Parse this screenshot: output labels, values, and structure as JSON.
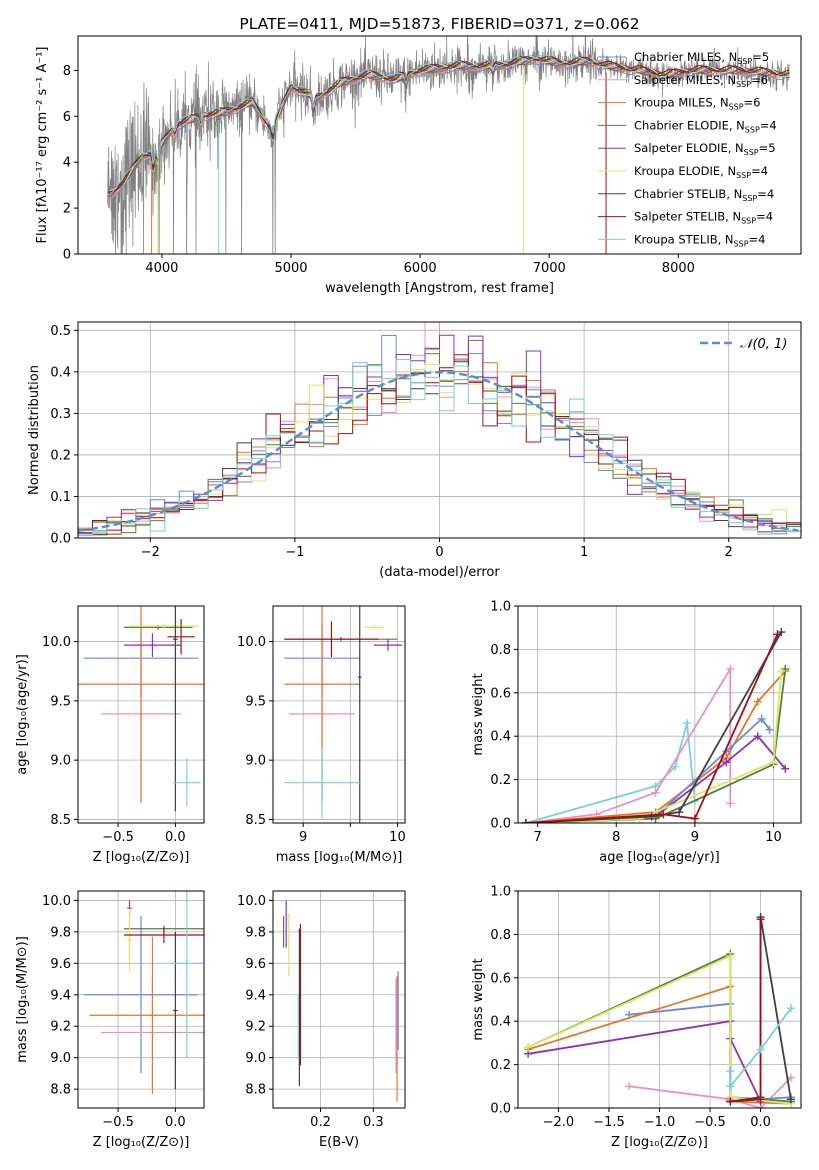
{
  "chart_data": [
    {
      "id": "spectrum",
      "type": "line",
      "title": "PLATE=0411, MJD=51873, FIBERID=0371, z=0.062",
      "xlabel": "wavelength [Angstrom, rest frame]",
      "ylabel": "Flux [fλ10⁻¹⁷ erg cm⁻² s⁻¹ A⁻¹]",
      "xlim": [
        3350,
        8950
      ],
      "ylim": [
        0,
        9.5
      ],
      "xticks": [
        4000,
        5000,
        6000,
        7000,
        8000
      ],
      "yticks": [
        0,
        2,
        4,
        6,
        8
      ],
      "grid": false,
      "legend_position": "right",
      "data_color": "#808080",
      "model_knots": {
        "x": [
          3600,
          3700,
          3850,
          3950,
          4100,
          4300,
          4500,
          4700,
          4850,
          5000,
          5200,
          5400,
          5600,
          5800,
          6000,
          6300,
          6600,
          6900,
          7100,
          7300,
          7450,
          7550,
          7700,
          7900,
          8100,
          8300,
          8500,
          8700,
          8850
        ],
        "y": [
          2.6,
          3.1,
          4.3,
          4.4,
          5.6,
          6.0,
          6.2,
          6.6,
          5.4,
          7.3,
          6.8,
          7.5,
          7.8,
          7.6,
          8.0,
          8.2,
          8.2,
          8.5,
          8.3,
          8.4,
          8.2,
          8.1,
          8.0,
          7.8,
          8.0,
          8.0,
          8.0,
          7.9,
          7.8
        ]
      },
      "series": [
        {
          "name": "Chabrier MILES, N_SSP=5",
          "color": "#6a8ad8"
        },
        {
          "name": "Salpeter MILES, N_SSP=6",
          "color": "#e890c8"
        },
        {
          "name": "Kroupa MILES, N_SSP=6",
          "color": "#e07828"
        },
        {
          "name": "Chabrier ELODIE, N_SSP=4",
          "color": "#508040"
        },
        {
          "name": "Salpeter ELODIE, N_SSP=5",
          "color": "#9030b0"
        },
        {
          "name": "Kroupa ELODIE, N_SSP=4",
          "color": "#d8e860"
        },
        {
          "name": "Chabrier STELIB, N_SSP=4",
          "color": "#404040"
        },
        {
          "name": "Salpeter STELIB, N_SSP=4",
          "color": "#a01010"
        },
        {
          "name": "Kroupa STELIB, N_SSP=4",
          "color": "#78d0d8"
        }
      ]
    },
    {
      "id": "residuals",
      "type": "histogram",
      "xlabel": "(data-model)/error",
      "ylabel": "Normed distribution",
      "xlim": [
        -2.5,
        2.5
      ],
      "ylim": [
        0,
        0.52
      ],
      "xticks": [
        -2,
        -1,
        0,
        1,
        2
      ],
      "yticks": [
        0.0,
        0.1,
        0.2,
        0.3,
        0.4,
        0.5
      ],
      "grid": true,
      "legend_position": "top-right",
      "legend_label": "𝒩(0, 1)",
      "reference_curve": "normal(0,1)",
      "reference_color": "#5a8ad8",
      "bin_width": 0.1,
      "series_colors": [
        "#6a8ad8",
        "#e890c8",
        "#e07828",
        "#508040",
        "#9030b0",
        "#d8e860",
        "#404040",
        "#a01010",
        "#78d0d8"
      ]
    },
    {
      "id": "age_vs_Z",
      "type": "errorbar",
      "xlabel": "Z [log₁₀(Z/Z⊙)]",
      "ylabel": "age  [log₁₀(age/yr)]",
      "xlim": [
        -0.85,
        0.25
      ],
      "ylim": [
        8.47,
        10.3
      ],
      "xticks": [
        -0.5,
        0.0
      ],
      "xtick_labels": [
        "−0.5",
        "0.0"
      ],
      "yticks": [
        8.5,
        9.0,
        9.5,
        10.0
      ],
      "grid": true,
      "points": [
        {
          "color": "#6a8ad8",
          "x": -0.3,
          "xerr": 0.5,
          "y": 9.86,
          "yerr": 0.3
        },
        {
          "color": "#e890c8",
          "x": -0.3,
          "xerr": 0.35,
          "y": 9.39,
          "yerr": 0.7
        },
        {
          "color": "#e07828",
          "x": -0.3,
          "xerr": 0.6,
          "y": 9.64,
          "yerr": 1.0
        },
        {
          "color": "#508040",
          "x": -0.15,
          "xerr": 0.3,
          "y": 10.12,
          "yerr": 0.02
        },
        {
          "color": "#9030b0",
          "x": -0.2,
          "xerr": 0.25,
          "y": 9.97,
          "yerr": 0.1
        },
        {
          "color": "#d8e860",
          "x": -0.1,
          "xerr": 0.3,
          "y": 10.13,
          "yerr": 0.02
        },
        {
          "color": "#404040",
          "x": 0.0,
          "xerr": 0.02,
          "y": 10.02,
          "yerr": 1.45
        },
        {
          "color": "#a01010",
          "x": 0.05,
          "xerr": 0.12,
          "y": 10.04,
          "yerr": 0.15
        },
        {
          "color": "#78d0d8",
          "x": 0.1,
          "xerr": 0.12,
          "y": 8.81,
          "yerr": 0.2
        }
      ]
    },
    {
      "id": "age_vs_mass",
      "type": "errorbar",
      "xlabel": "mass [log₁₀(M/M⊙)]",
      "ylabel": "",
      "xlim": [
        8.68,
        10.08
      ],
      "ylim": [
        8.47,
        10.3
      ],
      "xticks": [
        9,
        9.5,
        10
      ],
      "xtick_labels": [
        "9",
        "",
        "10"
      ],
      "yticks": [
        8.5,
        9.0,
        9.5,
        10.0
      ],
      "grid": true,
      "points": [
        {
          "color": "#6a8ad8",
          "x": 9.2,
          "xerr": 0.4,
          "y": 9.86,
          "yerr": 0.3
        },
        {
          "color": "#e890c8",
          "x": 9.2,
          "xerr": 0.35,
          "y": 9.39,
          "yerr": 0.7
        },
        {
          "color": "#e07828",
          "x": 9.2,
          "xerr": 0.4,
          "y": 9.64,
          "yerr": 1.0
        },
        {
          "color": "#508040",
          "x": 9.4,
          "xerr": 0.6,
          "y": 10.02,
          "yerr": 0.02
        },
        {
          "color": "#9030b0",
          "x": 9.9,
          "xerr": 0.15,
          "y": 9.97,
          "yerr": 0.05
        },
        {
          "color": "#d8e860",
          "x": 9.75,
          "xerr": 0.1,
          "y": 10.12,
          "yerr": 0.02
        },
        {
          "color": "#404040",
          "x": 9.6,
          "xerr": 0.02,
          "y": 9.7,
          "yerr": 1.4
        },
        {
          "color": "#a01010",
          "x": 9.3,
          "xerr": 0.5,
          "y": 10.02,
          "yerr": 0.15
        },
        {
          "color": "#78d0d8",
          "x": 9.2,
          "xerr": 0.4,
          "y": 8.81,
          "yerr": 0.3
        }
      ]
    },
    {
      "id": "weight_vs_age",
      "type": "line",
      "xlabel": "age  [log₁₀(age/yr)]",
      "ylabel": "mass weight",
      "xlim": [
        6.75,
        10.35
      ],
      "ylim": [
        0,
        1
      ],
      "xticks": [
        7,
        8,
        9,
        10
      ],
      "yticks": [
        0.0,
        0.2,
        0.4,
        0.6,
        0.8,
        1.0
      ],
      "grid": true,
      "series": [
        {
          "color": "#78d0d8",
          "x": [
            6.85,
            8.5,
            8.75,
            8.9,
            9.0
          ],
          "y": [
            0.0,
            0.17,
            0.26,
            0.46,
            0.1
          ]
        },
        {
          "color": "#e890c8",
          "x": [
            6.85,
            7.75,
            8.5,
            9.45,
            9.45
          ],
          "y": [
            0.0,
            0.04,
            0.14,
            0.71,
            0.09
          ]
        },
        {
          "color": "#e07828",
          "x": [
            6.85,
            8.5,
            9.4,
            9.8,
            10.15
          ],
          "y": [
            0.0,
            0.05,
            0.3,
            0.56,
            0.7
          ]
        },
        {
          "color": "#6a8ad8",
          "x": [
            6.85,
            8.5,
            9.4,
            9.85,
            9.95
          ],
          "y": [
            0.0,
            0.03,
            0.33,
            0.48,
            0.43
          ]
        },
        {
          "color": "#9030b0",
          "x": [
            6.85,
            8.5,
            9.4,
            9.8,
            10.15
          ],
          "y": [
            0.0,
            0.03,
            0.28,
            0.4,
            0.25
          ]
        },
        {
          "color": "#508040",
          "x": [
            6.85,
            8.5,
            10.0,
            10.15
          ],
          "y": [
            0.0,
            0.02,
            0.27,
            0.71
          ]
        },
        {
          "color": "#d8e860",
          "x": [
            6.85,
            8.3,
            10.0,
            10.1
          ],
          "y": [
            0.0,
            0.02,
            0.28,
            0.7
          ]
        },
        {
          "color": "#404040",
          "x": [
            6.85,
            8.45,
            8.8,
            10.1
          ],
          "y": [
            0.0,
            0.03,
            0.05,
            0.88
          ]
        },
        {
          "color": "#a01010",
          "x": [
            6.85,
            8.6,
            9.0,
            10.05
          ],
          "y": [
            0.0,
            0.04,
            0.02,
            0.87
          ]
        }
      ]
    },
    {
      "id": "mass_vs_Z",
      "type": "errorbar",
      "xlabel": "Z [log₁₀(Z/Z⊙)]",
      "ylabel": "mass [log₁₀(M/M⊙)]",
      "xlim": [
        -0.85,
        0.25
      ],
      "ylim": [
        8.68,
        10.06
      ],
      "xticks": [
        -0.5,
        0.0
      ],
      "xtick_labels": [
        "−0.5",
        "0.0"
      ],
      "yticks": [
        8.8,
        9.0,
        9.2,
        9.4,
        9.6,
        9.8,
        10.0
      ],
      "grid": true,
      "points": [
        {
          "color": "#6a8ad8",
          "x": -0.3,
          "xerr": 0.5,
          "y": 9.4,
          "yerr": 0.5
        },
        {
          "color": "#e890c8",
          "x": -0.2,
          "xerr": 0.45,
          "y": 9.16,
          "yerr": 0.35
        },
        {
          "color": "#e07828",
          "x": -0.2,
          "xerr": 0.55,
          "y": 9.27,
          "yerr": 0.5
        },
        {
          "color": "#508040",
          "x": -0.1,
          "xerr": 0.35,
          "y": 9.82,
          "yerr": 0.02
        },
        {
          "color": "#9030b0",
          "x": -0.4,
          "xerr": 0.02,
          "y": 9.95,
          "yerr": 0.05
        },
        {
          "color": "#d8e860",
          "x": -0.4,
          "xerr": 0.02,
          "y": 9.75,
          "yerr": 0.2
        },
        {
          "color": "#404040",
          "x": 0.0,
          "xerr": 0.02,
          "y": 9.3,
          "yerr": 0.5
        },
        {
          "color": "#a01010",
          "x": -0.1,
          "xerr": 0.35,
          "y": 9.78,
          "yerr": 0.05
        },
        {
          "color": "#78d0d8",
          "x": 0.1,
          "xerr": 0.15,
          "y": 9.6,
          "yerr": 0.6
        }
      ]
    },
    {
      "id": "mass_vs_ebv",
      "type": "errorbar",
      "xlabel": "E(B-V)",
      "ylabel": "",
      "xlim": [
        0.11,
        0.36
      ],
      "ylim": [
        8.68,
        10.06
      ],
      "xticks": [
        0.2,
        0.3
      ],
      "yticks": [
        8.8,
        9.0,
        9.2,
        9.4,
        9.6,
        9.8,
        10.0
      ],
      "grid": true,
      "points": [
        {
          "color": "#9030b0",
          "x": 0.135,
          "xerr": 0.0,
          "y": 9.85,
          "yerr": 0.15
        },
        {
          "color": "#d8e860",
          "x": 0.14,
          "xerr": 0.0,
          "y": 9.72,
          "yerr": 0.2
        },
        {
          "color": "#508040",
          "x": 0.13,
          "xerr": 0.0,
          "y": 9.8,
          "yerr": 0.1
        },
        {
          "color": "#404040",
          "x": 0.16,
          "xerr": 0.0,
          "y": 9.32,
          "yerr": 0.5
        },
        {
          "color": "#a01010",
          "x": 0.162,
          "xerr": 0.0,
          "y": 9.4,
          "yerr": 0.45
        },
        {
          "color": "#78d0d8",
          "x": 0.158,
          "xerr": 0.0,
          "y": 9.2,
          "yerr": 0.2
        },
        {
          "color": "#e07828",
          "x": 0.345,
          "xerr": 0.0,
          "y": 9.12,
          "yerr": 0.4
        },
        {
          "color": "#e890c8",
          "x": 0.343,
          "xerr": 0.0,
          "y": 9.2,
          "yerr": 0.3
        },
        {
          "color": "#6a8ad8",
          "x": 0.347,
          "xerr": 0.0,
          "y": 9.3,
          "yerr": 0.25
        }
      ]
    },
    {
      "id": "weight_vs_Z",
      "type": "line",
      "xlabel": "Z [log₁₀(Z/Z⊙)]",
      "ylabel": "mass weight",
      "xlim": [
        -2.4,
        0.4
      ],
      "ylim": [
        0,
        1
      ],
      "xticks": [
        -2.0,
        -1.5,
        -1.0,
        -0.5,
        0.0
      ],
      "xtick_labels": [
        "−2.0",
        "−1.5",
        "−1.0",
        "−0.5",
        "0.0"
      ],
      "yticks": [
        0.0,
        0.2,
        0.4,
        0.6,
        0.8,
        1.0
      ],
      "grid": true,
      "series": [
        {
          "color": "#e890c8",
          "x": [
            -1.3,
            -0.3,
            0.0,
            0.3
          ],
          "y": [
            0.1,
            0.04,
            0.0,
            0.14
          ]
        },
        {
          "color": "#6a8ad8",
          "x": [
            -1.3,
            -0.3,
            -0.3,
            0.3
          ],
          "y": [
            0.43,
            0.48,
            0.03,
            0.05
          ]
        },
        {
          "color": "#e07828",
          "x": [
            -2.3,
            -0.3,
            -0.3,
            0.3
          ],
          "y": [
            0.27,
            0.56,
            0.03,
            0.02
          ]
        },
        {
          "color": "#9030b0",
          "x": [
            -2.3,
            -0.3,
            -0.3,
            0.0
          ],
          "y": [
            0.25,
            0.4,
            0.32,
            0.03
          ]
        },
        {
          "color": "#508040",
          "x": [
            -2.3,
            -0.3,
            -0.3,
            0.3
          ],
          "y": [
            0.28,
            0.71,
            0.05,
            0.03
          ]
        },
        {
          "color": "#d8e860",
          "x": [
            -2.3,
            -0.3,
            -0.3,
            0.3
          ],
          "y": [
            0.28,
            0.7,
            0.05,
            0.02
          ]
        },
        {
          "color": "#404040",
          "x": [
            -0.3,
            0.0,
            0.0,
            0.3
          ],
          "y": [
            0.03,
            0.05,
            0.88,
            0.04
          ]
        },
        {
          "color": "#a01010",
          "x": [
            -0.3,
            0.0,
            0.0
          ],
          "y": [
            0.03,
            0.04,
            0.87
          ]
        },
        {
          "color": "#78d0d8",
          "x": [
            -0.3,
            -0.3,
            0.0,
            0.3
          ],
          "y": [
            0.17,
            0.1,
            0.27,
            0.46
          ]
        }
      ]
    }
  ]
}
